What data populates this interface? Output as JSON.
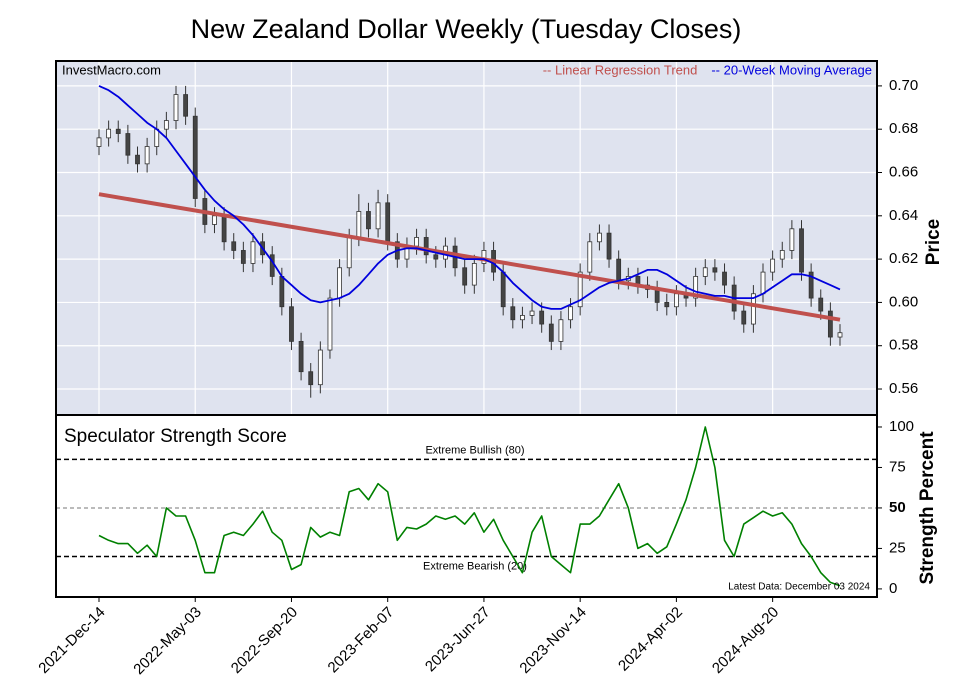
{
  "title": "New Zealand Dollar Weekly (Tuesday Closes)",
  "chart_data": [
    {
      "type": "candlestick",
      "annotation": "InvestMacro.com",
      "y_label": "Price",
      "ylim": [
        0.548,
        0.7115
      ],
      "yticks": [
        {
          "value": 0.56,
          "label": "0.56"
        },
        {
          "value": 0.58,
          "label": "0.58"
        },
        {
          "value": 0.6,
          "label": "0.60"
        },
        {
          "value": 0.62,
          "label": "0.62"
        },
        {
          "value": 0.64,
          "label": "0.64"
        },
        {
          "value": 0.66,
          "label": "0.66"
        },
        {
          "value": 0.68,
          "label": "0.68"
        },
        {
          "value": 0.7,
          "label": "0.70"
        }
      ],
      "grid": true,
      "up_color": "#ffffff",
      "down_color": "#444444",
      "open": [
        0.672,
        0.676,
        0.68,
        0.678,
        0.668,
        0.664,
        0.672,
        0.68,
        0.684,
        0.696,
        0.686,
        0.648,
        0.636,
        0.64,
        0.628,
        0.624,
        0.618,
        0.628,
        0.622,
        0.612,
        0.598,
        0.582,
        0.568,
        0.562,
        0.578,
        0.602,
        0.616,
        0.63,
        0.642,
        0.634,
        0.646,
        0.628,
        0.62,
        0.626,
        0.63,
        0.622,
        0.62,
        0.626,
        0.616,
        0.608,
        0.618,
        0.624,
        0.614,
        0.598,
        0.592,
        0.594,
        0.596,
        0.59,
        0.582,
        0.592,
        0.598,
        0.614,
        0.628,
        0.632,
        0.62,
        0.61,
        0.612,
        0.608,
        0.606,
        0.6,
        0.598,
        0.604,
        0.602,
        0.612,
        0.616,
        0.614,
        0.608,
        0.596,
        0.59,
        0.604,
        0.614,
        0.62,
        0.624,
        0.634,
        0.614,
        0.602,
        0.596,
        0.584
      ],
      "high": [
        0.68,
        0.684,
        0.684,
        0.682,
        0.672,
        0.676,
        0.684,
        0.688,
        0.7,
        0.7,
        0.69,
        0.652,
        0.644,
        0.644,
        0.632,
        0.628,
        0.632,
        0.632,
        0.626,
        0.616,
        0.602,
        0.586,
        0.572,
        0.582,
        0.606,
        0.62,
        0.634,
        0.65,
        0.646,
        0.652,
        0.65,
        0.632,
        0.63,
        0.634,
        0.634,
        0.626,
        0.63,
        0.63,
        0.62,
        0.622,
        0.628,
        0.628,
        0.618,
        0.602,
        0.598,
        0.6,
        0.6,
        0.594,
        0.596,
        0.602,
        0.618,
        0.632,
        0.636,
        0.636,
        0.624,
        0.616,
        0.616,
        0.612,
        0.61,
        0.604,
        0.608,
        0.608,
        0.616,
        0.62,
        0.62,
        0.618,
        0.612,
        0.6,
        0.608,
        0.618,
        0.624,
        0.628,
        0.638,
        0.638,
        0.618,
        0.606,
        0.6,
        0.59
      ],
      "low": [
        0.668,
        0.672,
        0.674,
        0.664,
        0.66,
        0.66,
        0.668,
        0.676,
        0.68,
        0.682,
        0.644,
        0.632,
        0.632,
        0.624,
        0.62,
        0.614,
        0.614,
        0.618,
        0.608,
        0.594,
        0.578,
        0.564,
        0.556,
        0.558,
        0.574,
        0.598,
        0.612,
        0.626,
        0.63,
        0.63,
        0.624,
        0.616,
        0.616,
        0.622,
        0.618,
        0.616,
        0.616,
        0.612,
        0.604,
        0.604,
        0.614,
        0.61,
        0.594,
        0.588,
        0.588,
        0.59,
        0.586,
        0.578,
        0.578,
        0.588,
        0.594,
        0.61,
        0.624,
        0.616,
        0.606,
        0.606,
        0.604,
        0.602,
        0.596,
        0.594,
        0.594,
        0.598,
        0.598,
        0.608,
        0.61,
        0.604,
        0.592,
        0.586,
        0.586,
        0.6,
        0.61,
        0.616,
        0.62,
        0.61,
        0.598,
        0.592,
        0.58,
        0.58
      ],
      "close": [
        0.676,
        0.68,
        0.678,
        0.668,
        0.664,
        0.672,
        0.68,
        0.684,
        0.696,
        0.686,
        0.648,
        0.636,
        0.64,
        0.628,
        0.624,
        0.618,
        0.628,
        0.622,
        0.612,
        0.598,
        0.582,
        0.568,
        0.562,
        0.578,
        0.602,
        0.616,
        0.63,
        0.642,
        0.634,
        0.646,
        0.628,
        0.62,
        0.626,
        0.63,
        0.622,
        0.62,
        0.626,
        0.616,
        0.608,
        0.618,
        0.624,
        0.614,
        0.598,
        0.592,
        0.594,
        0.596,
        0.59,
        0.582,
        0.592,
        0.598,
        0.614,
        0.628,
        0.632,
        0.62,
        0.61,
        0.612,
        0.608,
        0.606,
        0.6,
        0.598,
        0.604,
        0.602,
        0.612,
        0.616,
        0.614,
        0.608,
        0.596,
        0.59,
        0.604,
        0.614,
        0.62,
        0.624,
        0.634,
        0.614,
        0.602,
        0.596,
        0.584,
        0.586
      ],
      "series": [
        {
          "name": "-- Linear Regression Trend",
          "color": "#c0504d",
          "values": [
            0.65,
            0.592
          ]
        },
        {
          "name": "-- 20-Week Moving Average",
          "color": "#0000dd",
          "values": [
            0.7,
            0.698,
            0.695,
            0.691,
            0.687,
            0.683,
            0.68,
            0.676,
            0.67,
            0.664,
            0.658,
            0.652,
            0.647,
            0.643,
            0.64,
            0.636,
            0.631,
            0.625,
            0.619,
            0.612,
            0.608,
            0.604,
            0.601,
            0.6,
            0.601,
            0.602,
            0.604,
            0.608,
            0.613,
            0.618,
            0.622,
            0.624,
            0.625,
            0.625,
            0.624,
            0.623,
            0.622,
            0.621,
            0.62,
            0.62,
            0.62,
            0.618,
            0.614,
            0.609,
            0.605,
            0.601,
            0.598,
            0.597,
            0.597,
            0.599,
            0.601,
            0.604,
            0.607,
            0.609,
            0.61,
            0.611,
            0.613,
            0.615,
            0.615,
            0.613,
            0.61,
            0.607,
            0.605,
            0.604,
            0.603,
            0.603,
            0.602,
            0.602,
            0.602,
            0.604,
            0.607,
            0.61,
            0.613,
            0.613,
            0.612,
            0.61,
            0.608,
            0.606
          ]
        }
      ]
    },
    {
      "type": "line",
      "title": "Speculator Strength Score",
      "y_label": "Strength Percent",
      "annotation": "Latest Data: December 03 2024",
      "ylim": [
        -5,
        107.4
      ],
      "yticks": [
        0,
        25,
        50,
        75,
        100
      ],
      "midline": 50,
      "reference_lines": [
        {
          "value": 80,
          "label": "Extreme Bullish (80)"
        },
        {
          "value": 20,
          "label": "Extreme Bearish (20)"
        }
      ],
      "categories": [
        "2021-Dec-14",
        null,
        null,
        null,
        null,
        null,
        null,
        null,
        null,
        null,
        "2022-May-03",
        null,
        null,
        null,
        null,
        null,
        null,
        null,
        null,
        null,
        "2022-Sep-20",
        null,
        null,
        null,
        null,
        null,
        null,
        null,
        null,
        null,
        "2023-Feb-07",
        null,
        null,
        null,
        null,
        null,
        null,
        null,
        null,
        null,
        "2023-Jun-27",
        null,
        null,
        null,
        null,
        null,
        null,
        null,
        null,
        null,
        "2023-Nov-14",
        null,
        null,
        null,
        null,
        null,
        null,
        null,
        null,
        null,
        "2024-Apr-02",
        null,
        null,
        null,
        null,
        null,
        null,
        null,
        null,
        null,
        "2024-Aug-20",
        null,
        null,
        null,
        null,
        null,
        null,
        null
      ],
      "color": "#008000",
      "values": [
        33,
        30,
        28,
        28,
        22,
        27,
        20,
        50,
        45,
        45,
        30,
        10,
        10,
        33,
        35,
        33,
        40,
        48,
        35,
        30,
        12,
        15,
        38,
        32,
        35,
        33,
        60,
        62,
        55,
        65,
        60,
        30,
        38,
        37,
        40,
        45,
        43,
        45,
        40,
        47,
        35,
        43,
        30,
        20,
        10,
        35,
        45,
        20,
        15,
        10,
        40,
        40,
        45,
        55,
        65,
        50,
        25,
        28,
        22,
        26,
        40,
        55,
        75,
        100,
        75,
        30,
        20,
        40,
        44,
        48,
        45,
        47,
        40,
        28,
        20,
        10,
        4,
        2
      ]
    }
  ]
}
